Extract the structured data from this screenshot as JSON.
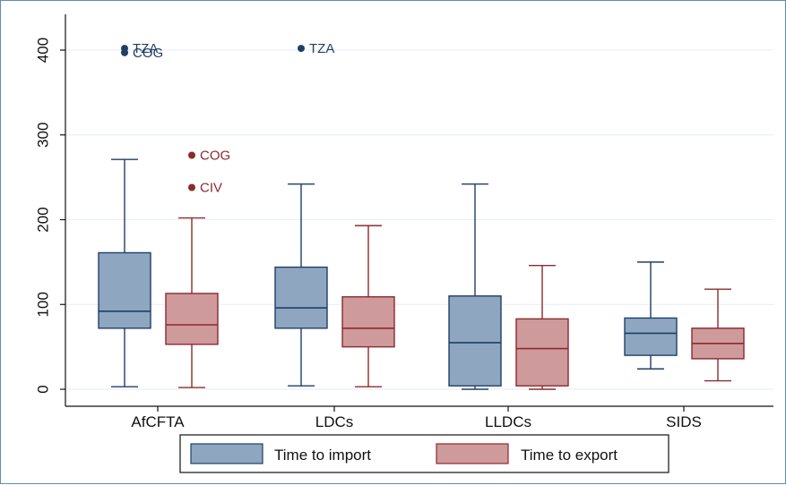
{
  "chart_data": {
    "type": "boxplot",
    "categories": [
      "AfCFTA",
      "LDCs",
      "LLDCs",
      "SIDS"
    ],
    "y_ticks": [
      0,
      100,
      200,
      300,
      400
    ],
    "ylim": [
      -20,
      420
    ],
    "grid": true,
    "legend_position": "bottom",
    "series": [
      {
        "name": "Time to import",
        "color": "#8ea6c0",
        "stroke": "#1f3f66",
        "boxes": [
          {
            "min": 3,
            "q1": 72,
            "median": 92,
            "q3": 161,
            "max": 271
          },
          {
            "min": 4,
            "q1": 72,
            "median": 96,
            "q3": 144,
            "max": 242
          },
          {
            "min": 0,
            "q1": 4,
            "median": 55,
            "q3": 110,
            "max": 242
          },
          {
            "min": 24,
            "q1": 40,
            "median": 66,
            "q3": 84,
            "max": 150
          }
        ],
        "outliers": [
          {
            "category": 0,
            "value": 402,
            "label": "TZA"
          },
          {
            "category": 0,
            "value": 397,
            "label": "COG"
          },
          {
            "category": 1,
            "value": 402,
            "label": "TZA"
          }
        ]
      },
      {
        "name": "Time to export",
        "color": "#cf9a9c",
        "stroke": "#8b2a2e",
        "boxes": [
          {
            "min": 2,
            "q1": 53,
            "median": 76,
            "q3": 113,
            "max": 202
          },
          {
            "min": 3,
            "q1": 50,
            "median": 72,
            "q3": 109,
            "max": 193
          },
          {
            "min": 0,
            "q1": 4,
            "median": 48,
            "q3": 83,
            "max": 146
          },
          {
            "min": 10,
            "q1": 36,
            "median": 54,
            "q3": 72,
            "max": 118
          }
        ],
        "outliers": [
          {
            "category": 0,
            "value": 276,
            "label": "COG"
          },
          {
            "category": 0,
            "value": 238,
            "label": "CIV"
          }
        ]
      }
    ]
  },
  "legend": {
    "import_label": "Time to import",
    "export_label": "Time to export"
  }
}
